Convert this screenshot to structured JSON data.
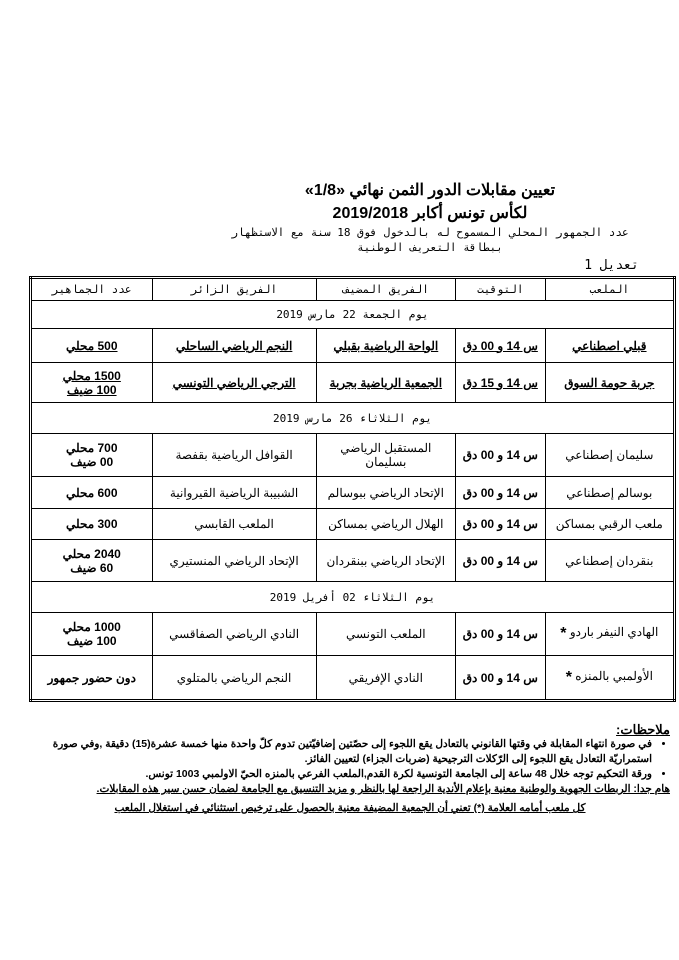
{
  "header": {
    "title_line1": "تعيين مقابلات الدور الثمن نهائي «1/8»",
    "title_line2": "لكأس تونس أكابر 2019/2018",
    "subtitle_line1": "عدد الجمهور المحلي المسموح له بالدخول فوق 18 سنة مع الاستظهار",
    "subtitle_line2": "ببطاقة التعريف الوطنية",
    "revision": "تعديل 1"
  },
  "table": {
    "columns": [
      "الملعب",
      "التوقيت",
      "الفريق المضيف",
      "الفريق الزائر",
      "عدد الجماهير"
    ],
    "days": [
      {
        "label": "يوم الجمعة 22 مارس 2019",
        "matches": [
          {
            "stadium": "قبلي اصطناعي",
            "time": "س 14 و 00 دق",
            "home": "الواحة الرياضية بقبلي",
            "away": "النجم الرياضي الساحلي",
            "crowd": [
              "500 محلي"
            ],
            "underlined": true
          },
          {
            "stadium": "جربة حومة السوق",
            "time": "س 14 و 15 دق",
            "home": "الجمعية الرياضية بجربة",
            "away": "الترجي الرياضي التونسي",
            "crowd": [
              "1500 محلي",
              "100 ضيف"
            ],
            "underlined": true
          }
        ]
      },
      {
        "label": "يوم الثلاثاء 26 مارس 2019",
        "matches": [
          {
            "stadium": "سليمان إصطناعي",
            "time": "س 14 و 00 دق",
            "home": "المستقبل الرياضي بسليمان",
            "away": "القوافل الرياضية بقفصة",
            "crowd": [
              "700 محلي",
              "00 ضيف"
            ]
          },
          {
            "stadium": "بوسالم إصطناعي",
            "time": "س 14 و 00 دق",
            "home": "الإتحاد الرياضي ببوسالم",
            "away": "الشبيبة الرياضية القيروانية",
            "crowd": [
              "600 محلي"
            ]
          },
          {
            "stadium": "ملعب الرقبي بمساكن",
            "time": "س 14 و 00 دق",
            "home": "الهلال الرياضي بمساكن",
            "away": "الملعب القابسي",
            "crowd": [
              "300 محلي"
            ]
          },
          {
            "stadium": "بنقردان إصطناعي",
            "time": "س 14 و 00 دق",
            "home": "الإتحاد الرياضي ببنقردان",
            "away": "الإتحاد الرياضي المنستيري",
            "crowd": [
              "2040 محلي",
              "60 ضيف"
            ]
          }
        ]
      },
      {
        "label": "يوم الثلاثاء 02 أفريل 2019",
        "matches": [
          {
            "stadium": "الهادي النيفر باردو",
            "star": "*",
            "time": "س 14 و 00 دق",
            "home": "الملعب التونسي",
            "away": "النادي الرياضي الصفاقسي",
            "crowd": [
              "1000 محلي",
              "100 ضيف"
            ]
          },
          {
            "stadium": "الأولمبي بالمنزه",
            "star": "*",
            "time": "س 14 و 00 دق",
            "home": "النادي الإفريقي",
            "away": "النجم الرياضي بالمتلوي",
            "crowd": [
              "دون حضور جمهور"
            ]
          }
        ]
      }
    ]
  },
  "notes": {
    "heading": "ملاحظات:",
    "bullets": [
      "في صورة انتهاء المقابلة في وقتها القانوني بالتعادل يقع اللجوء إلى حصّتين إضافيّتين تدوم كلّ واحدة منها خمسة عشرة(15) دقيقة ,وفي صورة استمراريّة التعادل يقع اللجوء إلى الرّكلات الترجيحية (ضربات الجزاء) لتعيين الفائز.",
      "ورقة التحكيم توجه خلال 48 ساعة إلى الجامعة التونسية لكرة القدم,الملعب الفرعي بالمنزه الحيّ الاولمبي 1003 تونس."
    ],
    "important": "هام جدا: الربطات الجهوية والوطنية معنية بإعلام الأندية الراجعة لها بالنظر و مزيد التنسيق مع الجامعة لضمان حسن سير هذه المقابلات.",
    "star_note": "كل ملعب أمامه العلامة (*) تعني أن الجمعية المضيفة معنية بالحصول على ترخيص استثنائي في استغلال الملعب"
  }
}
